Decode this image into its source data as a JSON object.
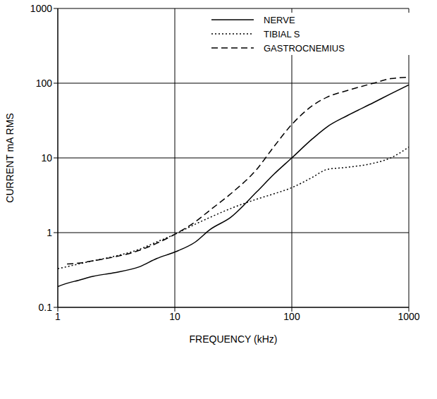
{
  "chart_data": {
    "type": "line",
    "x_label": "FREQUENCY (kHz)",
    "y_label": "CURRENT mA RMS",
    "log": true,
    "grid": true,
    "legend": "upper right",
    "xlim": [
      1,
      1000
    ],
    "ylim": [
      0.1,
      1000
    ],
    "xticks": [
      1,
      10,
      100,
      1000
    ],
    "yticks": [
      0.1,
      1,
      10,
      100,
      1000
    ],
    "x": [
      1,
      1.2,
      1.5,
      2,
      3,
      5,
      7,
      10,
      15,
      20,
      30,
      50,
      70,
      100,
      150,
      200,
      300,
      500,
      700,
      1000
    ],
    "series": [
      {
        "name": "NERVE",
        "color": "#000000",
        "line_style": "solid",
        "values": [
          0.19,
          0.21,
          0.23,
          0.26,
          0.29,
          0.35,
          0.45,
          0.55,
          0.75,
          1.1,
          1.6,
          3.5,
          6,
          10,
          18,
          26,
          37,
          55,
          72,
          95
        ]
      },
      {
        "name": "TIBIAL S",
        "color": "#000000",
        "line_style": "dotted",
        "values": [
          0.33,
          0.35,
          0.38,
          0.42,
          0.48,
          0.6,
          0.75,
          0.95,
          1.3,
          1.6,
          2.1,
          2.8,
          3.3,
          4,
          5.5,
          7,
          7.5,
          8.5,
          10,
          14
        ]
      },
      {
        "name": "GASTROCNEMIUS",
        "color": "#000000",
        "line_style": "dashed",
        "values": [
          null,
          0.38,
          0.39,
          0.42,
          0.47,
          0.58,
          0.72,
          0.95,
          1.4,
          2,
          3.3,
          7,
          14,
          28,
          50,
          65,
          80,
          100,
          115,
          120
        ]
      }
    ]
  }
}
